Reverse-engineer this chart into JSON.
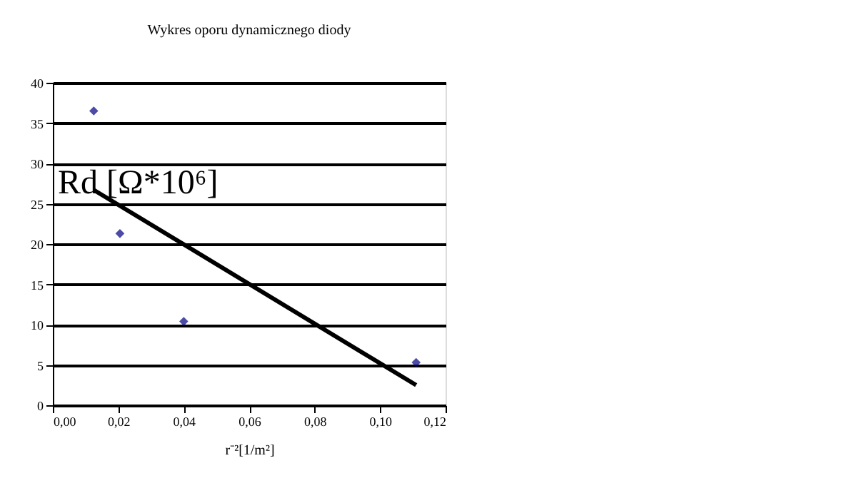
{
  "chart_data": {
    "type": "scatter",
    "title": "Wykres oporu dynamicznego diody",
    "xlabel": "r⁻²[1/m²]",
    "ylabel": "Rd [Ω*10⁶]",
    "series": [
      {
        "color": "#000080",
        "marker": "diamond",
        "x": [
          0.0125,
          0.0205,
          0.04,
          0.111
        ],
        "values": [
          36.5,
          21.3,
          10.4,
          5.3
        ]
      },
      {
        "type": "line",
        "color": "#000000",
        "marker": "none",
        "x": [
          0.0125,
          0.111
        ],
        "values": [
          26.7,
          2.5
        ]
      }
    ],
    "xlim": [
      0,
      0.12
    ],
    "xticks": [
      {
        "value": 0,
        "label": "0,00"
      },
      {
        "value": 0.02,
        "label": "0,02"
      },
      {
        "value": 0.04,
        "label": "0,04"
      },
      {
        "value": 0.06,
        "label": "0,06"
      },
      {
        "value": 0.08,
        "label": "0,08"
      },
      {
        "value": 0.1,
        "label": "0,10"
      },
      {
        "value": 0.12,
        "label": "0,12"
      }
    ],
    "ylim": [
      0,
      40
    ],
    "yticks": [
      0,
      5,
      10,
      15,
      20,
      25,
      30,
      35,
      40
    ],
    "grid": "y"
  }
}
